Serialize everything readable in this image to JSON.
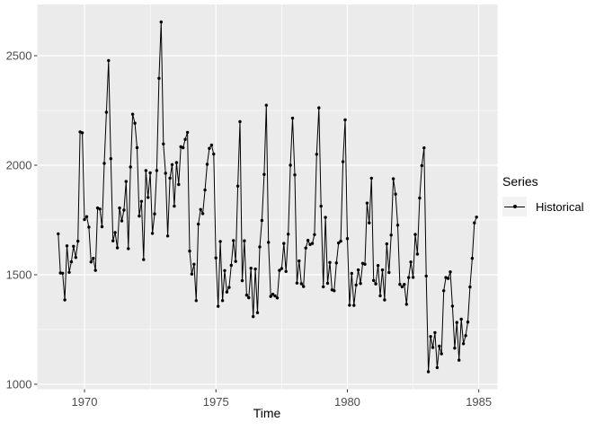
{
  "style": {
    "background": "#FFFFFF",
    "panel_bg": "#EBEBEB",
    "grid_color": "#FFFFFF",
    "axis_text_color": "#4D4D4D",
    "tick_color": "#333333",
    "line_color": "#000000",
    "legend_key_bg": "#F2F2F2"
  },
  "chart_data": {
    "type": "line",
    "title": "",
    "xlabel": "Time",
    "ylabel": "",
    "grid": true,
    "xlim": [
      1968.204,
      1985.712
    ],
    "ylim": [
      977.2,
      2733.8
    ],
    "x_ticks": [
      1970,
      1975,
      1980,
      1985
    ],
    "y_ticks": [
      1000,
      1500,
      2000,
      2500
    ],
    "x_minor": [
      1972.5,
      1977.5,
      1982.5
    ],
    "y_minor": [
      1250,
      1750,
      2250
    ],
    "legend": {
      "position": "right",
      "title": "Series",
      "entries": [
        {
          "label": "Historical",
          "color": "#000000",
          "glyph": "line-point"
        }
      ]
    },
    "series": [
      {
        "name": "Historical",
        "start_year": 1969,
        "frequency": 12,
        "values": [
          1687,
          1508,
          1507,
          1385,
          1632,
          1511,
          1559,
          1630,
          1579,
          1653,
          2152,
          2148,
          1752,
          1765,
          1717,
          1558,
          1575,
          1520,
          1805,
          1800,
          1719,
          2008,
          2242,
          2478,
          2030,
          1655,
          1693,
          1623,
          1805,
          1746,
          1795,
          1926,
          1619,
          1992,
          2233,
          2192,
          2080,
          1768,
          1835,
          1569,
          1976,
          1853,
          1965,
          1689,
          1778,
          1976,
          2397,
          2654,
          2097,
          1963,
          1677,
          1941,
          2003,
          1813,
          2012,
          1912,
          2084,
          2080,
          2118,
          2150,
          1608,
          1503,
          1548,
          1382,
          1731,
          1798,
          1779,
          1887,
          2004,
          2077,
          2092,
          2051,
          1577,
          1356,
          1652,
          1382,
          1519,
          1421,
          1442,
          1543,
          1656,
          1561,
          1905,
          2199,
          1473,
          1655,
          1407,
          1395,
          1530,
          1309,
          1526,
          1327,
          1627,
          1748,
          1958,
          2274,
          1648,
          1401,
          1411,
          1403,
          1394,
          1520,
          1528,
          1643,
          1515,
          1685,
          2000,
          2215,
          1956,
          1462,
          1563,
          1459,
          1446,
          1622,
          1657,
          1638,
          1643,
          1683,
          2050,
          2262,
          1813,
          1445,
          1762,
          1461,
          1556,
          1431,
          1427,
          1554,
          1645,
          1653,
          2016,
          2207,
          1665,
          1361,
          1506,
          1360,
          1453,
          1522,
          1460,
          1552,
          1548,
          1827,
          1737,
          1941,
          1474,
          1458,
          1542,
          1404,
          1522,
          1385,
          1641,
          1510,
          1681,
          1938,
          1868,
          1726,
          1456,
          1445,
          1456,
          1365,
          1487,
          1558,
          1488,
          1684,
          1594,
          1850,
          1998,
          2079,
          1494,
          1057,
          1218,
          1168,
          1236,
          1076,
          1174,
          1139,
          1427,
          1487,
          1483,
          1513,
          1357,
          1165,
          1282,
          1110,
          1297,
          1185,
          1222,
          1284,
          1444,
          1575,
          1737,
          1763
        ]
      }
    ]
  }
}
